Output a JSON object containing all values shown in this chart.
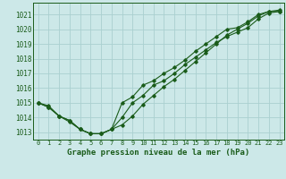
{
  "title": "Graphe pression niveau de la mer (hPa)",
  "bg_color": "#cce8e8",
  "grid_color": "#aad0d0",
  "line_color": "#1a5c1a",
  "text_color": "#1a5c1a",
  "xlim": [
    -0.5,
    23.5
  ],
  "ylim": [
    1012.5,
    1021.8
  ],
  "yticks": [
    1013,
    1014,
    1015,
    1016,
    1017,
    1018,
    1019,
    1020,
    1021
  ],
  "xticks": [
    0,
    1,
    2,
    3,
    4,
    5,
    6,
    7,
    8,
    9,
    10,
    11,
    12,
    13,
    14,
    15,
    16,
    17,
    18,
    19,
    20,
    21,
    22,
    23
  ],
  "series": [
    [
      1015.0,
      1014.8,
      1014.1,
      1013.8,
      1013.2,
      1012.9,
      1012.9,
      1013.2,
      1015.0,
      1015.4,
      1016.2,
      1016.5,
      1017.0,
      1017.4,
      1017.9,
      1018.5,
      1019.0,
      1019.5,
      1020.0,
      1020.1,
      1020.5,
      1021.0,
      1021.2,
      1021.2
    ],
    [
      1015.0,
      1014.7,
      1014.1,
      1013.8,
      1013.2,
      1012.9,
      1012.9,
      1013.2,
      1014.0,
      1015.0,
      1015.5,
      1016.2,
      1016.5,
      1017.0,
      1017.6,
      1018.1,
      1018.6,
      1019.1,
      1019.5,
      1019.8,
      1020.1,
      1020.7,
      1021.1,
      1021.2
    ],
    [
      1015.0,
      1014.7,
      1014.1,
      1013.7,
      1013.2,
      1012.9,
      1012.9,
      1013.2,
      1013.5,
      1014.1,
      1014.9,
      1015.5,
      1016.1,
      1016.6,
      1017.2,
      1017.8,
      1018.4,
      1019.0,
      1019.6,
      1020.0,
      1020.4,
      1020.9,
      1021.2,
      1021.3
    ]
  ]
}
